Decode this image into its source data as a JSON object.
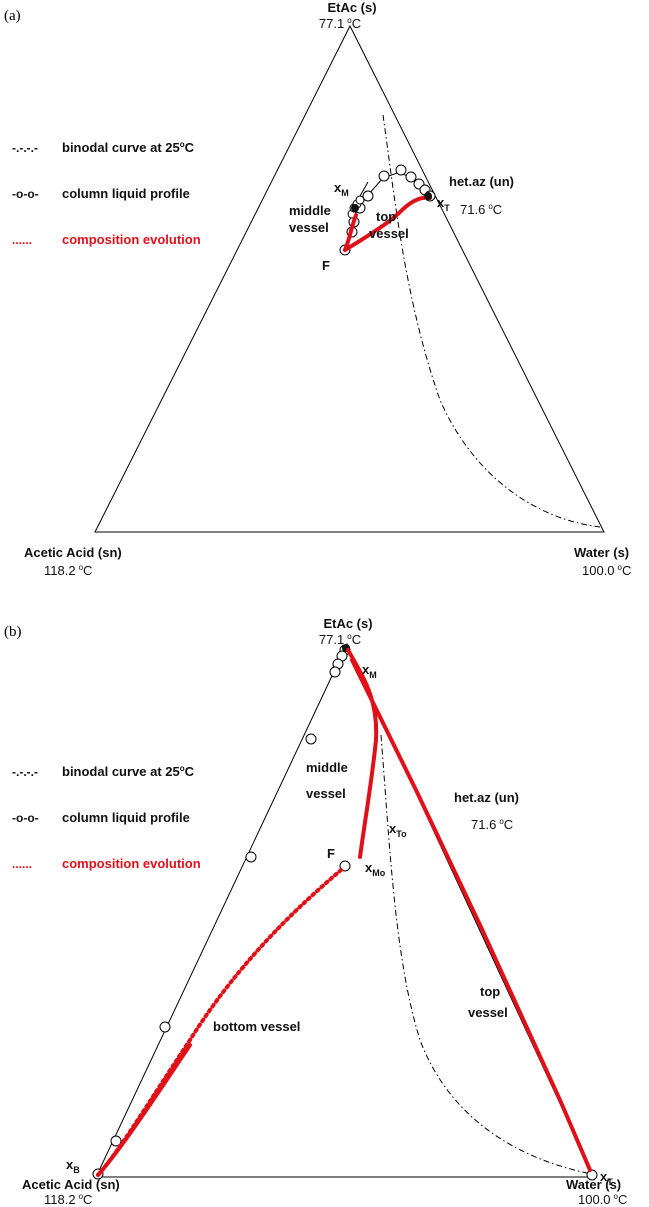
{
  "panel_a": {
    "panel_label": "(a)",
    "vertex_top": {
      "name": "EtAc (s)",
      "temp": "77.1",
      "unit": "C"
    },
    "vertex_left": {
      "name": "Acetic Acid (sn)",
      "temp": "118.2",
      "unit": "C"
    },
    "vertex_right": {
      "name": "Water (s)",
      "temp": "100.0",
      "unit": "C"
    },
    "azeotrope": {
      "name": "het.az (un)",
      "temp": "71.6",
      "unit": "C"
    },
    "legend": [
      {
        "symbol": "-.-.-.-",
        "text": "binodal curve at 25",
        "unit": "C"
      },
      {
        "symbol": "-o-o-",
        "text": "column liquid profile"
      },
      {
        "symbol": "......",
        "text": "composition evolution"
      }
    ],
    "labels": {
      "xm": "x",
      "xm_sub": "M",
      "xt": "x",
      "xt_sub": "T",
      "feed": "F",
      "middle_vessel_1": "middle",
      "middle_vessel_2": "vessel",
      "top_vessel_1": "top",
      "top_vessel_2": "vessel"
    }
  },
  "panel_b": {
    "panel_label": "(b)",
    "vertex_top": {
      "name": "EtAc (s)",
      "temp": "77.1",
      "unit": "C"
    },
    "vertex_left": {
      "name": "Acetic Acid (sn)",
      "temp": "118.2",
      "unit": "C"
    },
    "vertex_right": {
      "name": "Water (s)",
      "temp": "100.0",
      "unit": "C"
    },
    "azeotrope": {
      "name": "het.az (un)",
      "temp": "71.6",
      "unit": "C"
    },
    "legend": [
      {
        "symbol": "-.-.-.-",
        "text": "binodal curve at 25",
        "unit": "C"
      },
      {
        "symbol": "-o-o-",
        "text": "column liquid profile"
      },
      {
        "symbol": "......",
        "text": "composition evolution"
      }
    ],
    "labels": {
      "xm": "x",
      "xm_sub": "M",
      "xto": "x",
      "xto_sub": "To",
      "xmo": "x",
      "xmo_sub": "Mo",
      "xb": "x",
      "xb_sub": "B",
      "xt": "x",
      "xt_sub": "T",
      "feed": "F",
      "middle_vessel_1": "middle",
      "middle_vessel_2": "vessel",
      "top_vessel_1": "top",
      "top_vessel_2": "vessel",
      "bottom_vessel": "bottom vessel"
    }
  },
  "colors": {
    "evolution": "#e01018",
    "lines": "#000000"
  },
  "degree_symbol": "o"
}
